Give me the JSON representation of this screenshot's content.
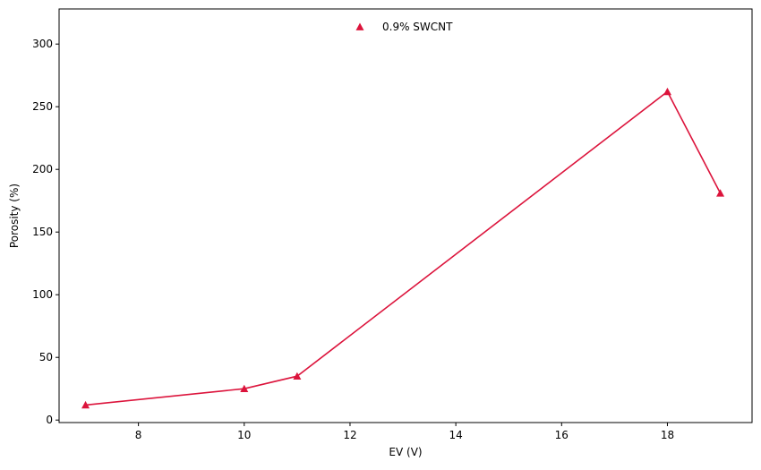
{
  "chart_data": {
    "type": "line",
    "title": "",
    "xlabel": "EV (V)",
    "ylabel": "Porosity (%)",
    "xlim": [
      6.5,
      19.6
    ],
    "ylim": [
      -2,
      328
    ],
    "xticks": [
      8,
      10,
      12,
      14,
      16,
      18
    ],
    "yticks": [
      0,
      50,
      100,
      150,
      200,
      250,
      300
    ],
    "grid": false,
    "legend_position": "top-center",
    "series": [
      {
        "name": "0.9% SWCNT",
        "color": "#dc143c",
        "marker": "triangle",
        "x": [
          7,
          10,
          11,
          18,
          19
        ],
        "y": [
          12,
          25,
          35,
          262,
          181
        ]
      }
    ]
  }
}
